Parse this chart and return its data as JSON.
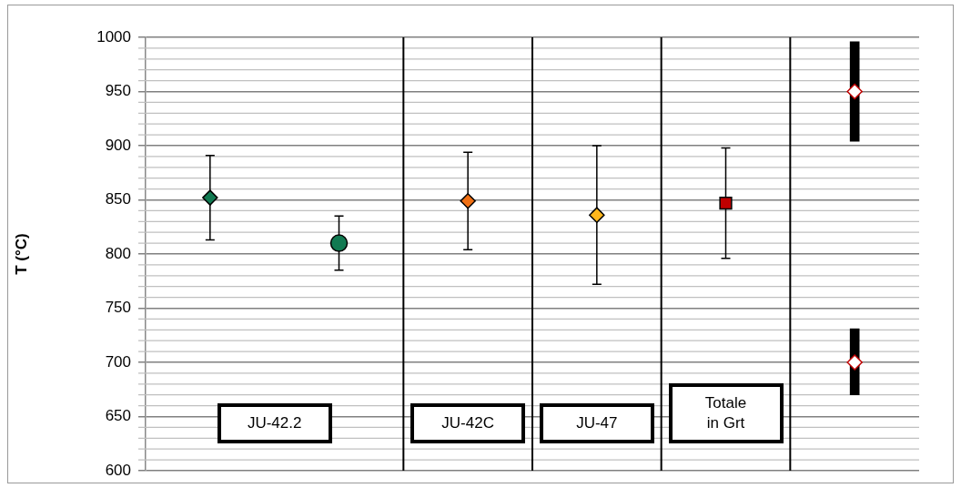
{
  "chart_data": {
    "type": "scatter",
    "ylabel": "T (°C)",
    "categories": [
      null,
      null,
      null,
      null,
      null,
      null
    ],
    "ylim": [
      600,
      1000
    ],
    "tick_labels": "y",
    "grid": "y",
    "yticks": [
      600,
      650,
      700,
      750,
      800,
      850,
      900,
      950,
      1000
    ],
    "series": [
      {
        "marker": "diamond",
        "color": "#127a52",
        "values": [
          852,
          null,
          null,
          null,
          null,
          null
        ],
        "errors": [
          39,
          null,
          null,
          null,
          null,
          null
        ]
      },
      {
        "marker": "circle",
        "color": "#127a52",
        "values": [
          null,
          810,
          null,
          null,
          null,
          null
        ],
        "errors": [
          null,
          25,
          null,
          null,
          null,
          null
        ]
      },
      {
        "marker": "diamond",
        "color": "#f07014",
        "values": [
          null,
          null,
          849,
          null,
          null,
          null
        ],
        "errors": [
          null,
          null,
          45,
          null,
          null,
          null
        ]
      },
      {
        "marker": "diamond",
        "color": "#ffb71c",
        "values": [
          null,
          null,
          null,
          836,
          null,
          null
        ],
        "errors": [
          null,
          null,
          null,
          64,
          null,
          null
        ]
      },
      {
        "marker": "square",
        "color": "#c00000",
        "values": [
          null,
          null,
          null,
          null,
          847,
          null
        ],
        "errors": [
          null,
          null,
          null,
          null,
          51,
          null
        ]
      },
      {
        "type": "bar",
        "color": "#000000",
        "base": [
          null,
          null,
          null,
          null,
          null,
          904
        ],
        "values": [
          null,
          null,
          null,
          null,
          null,
          92
        ]
      },
      {
        "type": "bar",
        "color": "#000000",
        "base": [
          null,
          null,
          null,
          null,
          null,
          670
        ],
        "values": [
          null,
          null,
          null,
          null,
          null,
          61
        ]
      },
      {
        "marker": "diamond",
        "color": "#ffffff",
        "values": [
          null,
          null,
          null,
          null,
          null,
          950
        ]
      },
      {
        "marker": "diamond",
        "color": "#ffffff",
        "values": [
          null,
          null,
          null,
          null,
          null,
          700
        ]
      }
    ],
    "annotations": [
      "JU-42.2",
      "JU-42C",
      "JU-47",
      "Totale in Grt"
    ]
  }
}
